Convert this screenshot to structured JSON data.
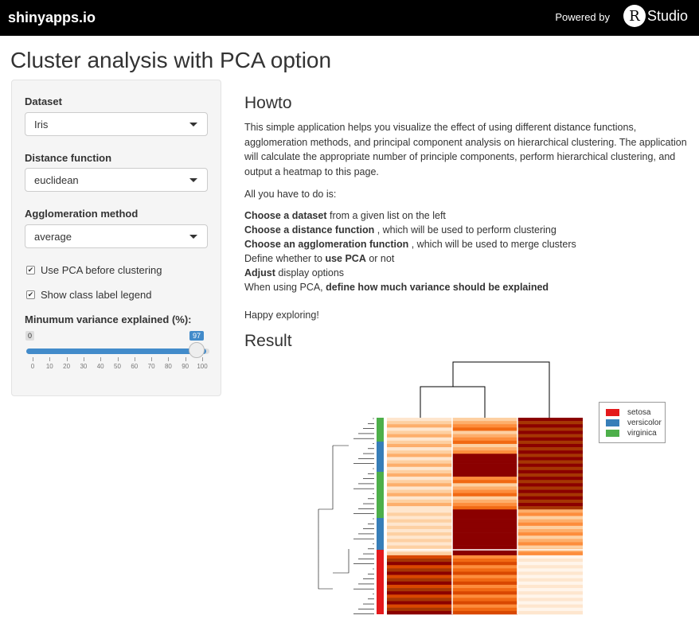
{
  "topbar": {
    "brand": "shinyapps.io",
    "powered": "Powered by",
    "logo_r": "R",
    "logo_studio": "Studio"
  },
  "title": "Cluster analysis with PCA option",
  "sidebar": {
    "dataset_label": "Dataset",
    "dataset_value": "Iris",
    "distance_label": "Distance function",
    "distance_value": "euclidean",
    "agglo_label": "Agglomeration method",
    "agglo_value": "average",
    "use_pca": "Use PCA before clustering",
    "show_legend": "Show class label legend",
    "variance_label": "Minumum variance explained (%):",
    "slider_min_badge": "0",
    "slider_value": "97",
    "slider_ticks": [
      "0",
      "10",
      "20",
      "30",
      "40",
      "50",
      "60",
      "70",
      "80",
      "90",
      "100"
    ]
  },
  "howto": {
    "heading": "Howto",
    "intro": "This simple application helps you visualize the effect of using different distance functions, agglomeration methods, and principal component analysis on hierarchical clustering. The application will calculate the appropriate number of principle components, perform hierarchical clustering, and output a heatmap to this page.",
    "all_you": "All you have to do is:",
    "s1_b": "Choose a dataset",
    "s1_t": " from a given list on the left",
    "s2_b": "Choose a distance function",
    "s2_t": " , which will be used to perform clustering",
    "s3_b": "Choose an agglomeration function",
    "s3_t": " , which will be used to merge clusters",
    "s4_a": "Define whether to ",
    "s4_b": "use PCA",
    "s4_c": " or not",
    "s5_b": "Adjust",
    "s5_t": " display options",
    "s6_a": "When using PCA, ",
    "s6_b": "define how much variance should be explained",
    "happy": "Happy exploring!"
  },
  "result": {
    "heading": "Result"
  },
  "legend": [
    {
      "name": "setosa",
      "color": "#e41a1c"
    },
    {
      "name": "versicolor",
      "color": "#377eb8"
    },
    {
      "name": "virginica",
      "color": "#4daf4a"
    }
  ],
  "colors": {
    "accent": "#428bca",
    "topbar": "#000000",
    "heat_low": "#fff5eb",
    "heat_high": "#8b0000"
  }
}
